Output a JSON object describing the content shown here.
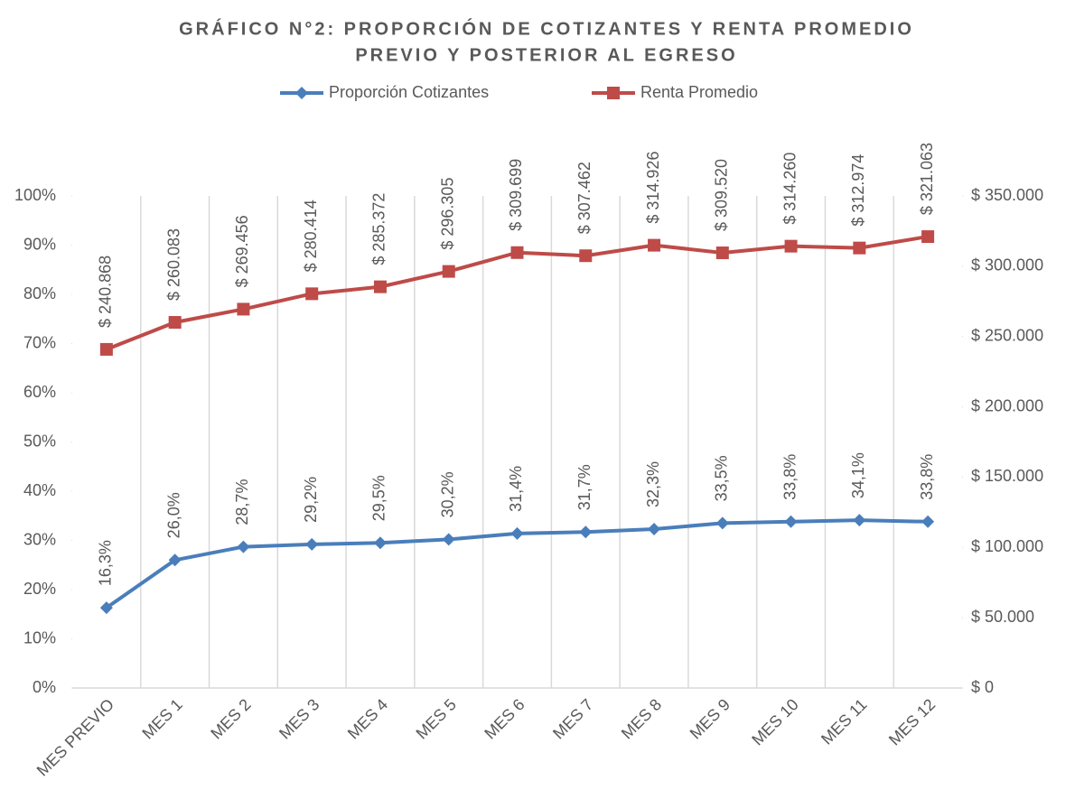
{
  "chart_data": {
    "type": "line",
    "title": [
      "GRÁFICO N°2: PROPORCIÓN DE COTIZANTES Y RENTA PROMEDIO",
      "PREVIO Y POSTERIOR AL EGRESO"
    ],
    "categories": [
      "MES PREVIO",
      "MES 1",
      "MES 2",
      "MES 3",
      "MES 4",
      "MES 5",
      "MES 6",
      "MES 7",
      "MES 8",
      "MES 9",
      "MES 10",
      "MES 11",
      "MES 12"
    ],
    "series": [
      {
        "name": "Proporción Cotizantes",
        "color": "#4a7ebb",
        "marker": "diamond",
        "values": [
          16.3,
          26.0,
          28.7,
          29.2,
          29.5,
          30.2,
          31.4,
          31.7,
          32.3,
          33.5,
          33.8,
          34.1,
          33.8
        ],
        "value_labels": [
          "16,3%",
          "26,0%",
          "28,7%",
          "29,2%",
          "29,5%",
          "30,2%",
          "31,4%",
          "31,7%",
          "32,3%",
          "33,5%",
          "33,8%",
          "34,1%",
          "33,8%"
        ]
      },
      {
        "name": "Renta Promedio",
        "color": "#be4b48",
        "marker": "square",
        "axis": "y2",
        "values": [
          240868,
          260083,
          269456,
          280414,
          285372,
          296305,
          309699,
          307462,
          314926,
          309520,
          314260,
          312974,
          321063
        ],
        "value_labels": [
          "$ 240.868",
          "$ 260.083",
          "$ 269.456",
          "$ 280.414",
          "$ 285.372",
          "$ 296.305",
          "$ 309.699",
          "$ 307.462",
          "$ 314.926",
          "$ 309.520",
          "$ 314.260",
          "$ 312.974",
          "$ 321.063"
        ]
      }
    ],
    "ylim": [
      0,
      100
    ],
    "yticks": [
      {
        "value": 0,
        "label": "0%"
      },
      {
        "value": 10,
        "label": "10%"
      },
      {
        "value": 20,
        "label": "20%"
      },
      {
        "value": 30,
        "label": "30%"
      },
      {
        "value": 40,
        "label": "40%"
      },
      {
        "value": 50,
        "label": "50%"
      },
      {
        "value": 60,
        "label": "60%"
      },
      {
        "value": 70,
        "label": "70%"
      },
      {
        "value": 80,
        "label": "80%"
      },
      {
        "value": 90,
        "label": "90%"
      },
      {
        "value": 100,
        "label": "100%"
      }
    ],
    "y2lim": [
      0,
      350000
    ],
    "y2ticks": [
      {
        "value": 0,
        "label": "$ 0"
      },
      {
        "value": 50000,
        "label": "$ 50.000"
      },
      {
        "value": 100000,
        "label": "$ 100.000"
      },
      {
        "value": 150000,
        "label": "$ 150.000"
      },
      {
        "value": 200000,
        "label": "$ 200.000"
      },
      {
        "value": 250000,
        "label": "$ 250.000"
      },
      {
        "value": 300000,
        "label": "$ 300.000"
      },
      {
        "value": 350000,
        "label": "$ 350.000"
      }
    ],
    "legend": "top"
  }
}
